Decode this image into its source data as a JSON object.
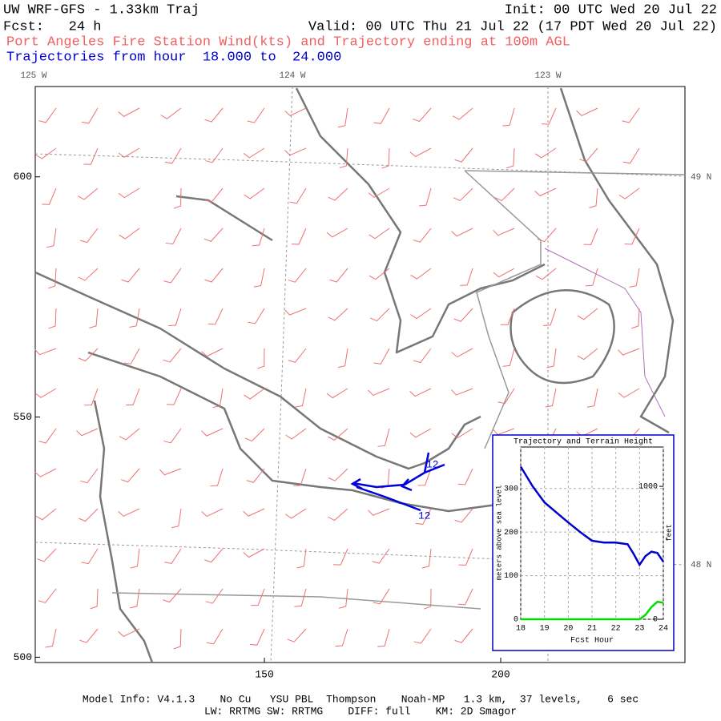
{
  "header": {
    "title": "UW WRF-GFS - 1.33km Traj",
    "init": "Init: 00 UTC Wed 20 Jul 22",
    "forecast": "Fcst:   24 h",
    "valid": "Valid: 00 UTC Thu 21 Jul 22 (17 PDT Wed 20 Jul 22)",
    "subtitle": "Port Angeles Fire Station Wind(kts) and Trajectory ending at 100m AGL",
    "trajectory_hours": "Trajectories from hour  18.000 to  24.000"
  },
  "map": {
    "xlim": [
      101.5,
      239
    ],
    "ylim": [
      498.9,
      618.8
    ],
    "xticks": [
      150,
      200
    ],
    "yticks": [
      500,
      550,
      600
    ],
    "longitude_labels": [
      "125 W",
      "124 W",
      "123 W"
    ],
    "latitude_labels": [
      "49 N",
      "48 N"
    ],
    "trajectory_labels": [
      "12",
      "12"
    ]
  },
  "chart_data": {
    "type": "line",
    "title": "Trajectory and Terrain Height",
    "x_label": "Fcst Hour",
    "y_label": "meters above sea level",
    "y2_label": "feet",
    "x": [
      18,
      18.5,
      19,
      19.5,
      20,
      20.5,
      21,
      21.5,
      22,
      22.5,
      22.75,
      23,
      23.25,
      23.5,
      23.75,
      24
    ],
    "xlim": [
      18,
      24
    ],
    "xticks": [
      18,
      19,
      20,
      21,
      22,
      23,
      24
    ],
    "ylim": [
      0,
      395
    ],
    "yticks": [
      0,
      100,
      200,
      300
    ],
    "y2lim": [
      0,
      1296
    ],
    "y2ticks": [
      0,
      1000
    ],
    "grid": true,
    "series": [
      {
        "color": "#0000cc",
        "values": [
          350,
          305,
          268,
          245,
          222,
          200,
          180,
          176,
          176,
          172,
          150,
          125,
          145,
          155,
          152,
          132
        ]
      },
      {
        "color": "#00dd00",
        "values": [
          0,
          0,
          0,
          0,
          0,
          0,
          0,
          0,
          0,
          0,
          0,
          0,
          10,
          28,
          40,
          38
        ]
      }
    ]
  },
  "footer": {
    "line1": "Model Info: V4.1.3    No Cu   YSU PBL  Thompson    Noah-MP   1.3 km,  37 levels,    6 sec",
    "line2": "LW: RRTMG SW: RRTMG    DIFF: full    KM: 2D Smagor"
  }
}
